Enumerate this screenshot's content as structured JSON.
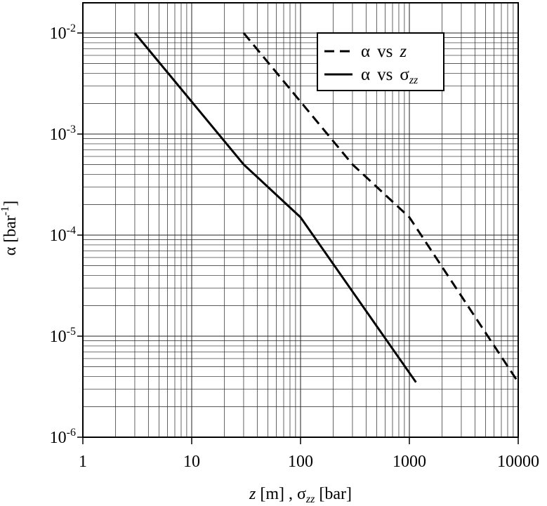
{
  "chart_data": {
    "type": "line",
    "x_scale": "log",
    "y_scale": "log",
    "xlim": [
      1,
      10000
    ],
    "ylim": [
      1e-06,
      0.02
    ],
    "grid": true,
    "legend_position": "top-right",
    "xlabel": {
      "z": "z",
      "rest": " [m] , ",
      "sigma": "σ",
      "sub": "zz",
      "unit": " [bar]"
    },
    "ylabel": {
      "main": "α  [bar",
      "sup": "-1",
      "close": "]"
    },
    "x_ticks": [
      {
        "value": 1,
        "label": "1"
      },
      {
        "value": 10,
        "label": "10"
      },
      {
        "value": 100,
        "label": "100"
      },
      {
        "value": 1000,
        "label": "1000"
      },
      {
        "value": 10000,
        "label": "10000"
      }
    ],
    "y_ticks": [
      {
        "value": 0.01,
        "base": "10",
        "exp": "-2"
      },
      {
        "value": 0.001,
        "base": "10",
        "exp": "-3"
      },
      {
        "value": 0.0001,
        "base": "10",
        "exp": "-4"
      },
      {
        "value": 1e-05,
        "base": "10",
        "exp": "-5"
      },
      {
        "value": 1e-06,
        "base": "10",
        "exp": "-6"
      }
    ],
    "series": [
      {
        "key": "alpha-vs-z",
        "legend": {
          "alpha": "α",
          "vs": "vs",
          "var": "z",
          "sub": ""
        },
        "style": "dashed",
        "color": "#000000",
        "points": [
          [
            30,
            0.01
          ],
          [
            300,
            0.0005
          ],
          [
            1000,
            0.00015
          ],
          [
            10000,
            3.5e-06
          ]
        ]
      },
      {
        "key": "alpha-vs-sigma",
        "legend": {
          "alpha": "α",
          "vs": "vs",
          "var": "σ",
          "sub": "zz"
        },
        "style": "solid",
        "color": "#000000",
        "points": [
          [
            3,
            0.01
          ],
          [
            30,
            0.0005
          ],
          [
            100,
            0.00015
          ],
          [
            1150,
            3.5e-06
          ]
        ]
      }
    ]
  }
}
